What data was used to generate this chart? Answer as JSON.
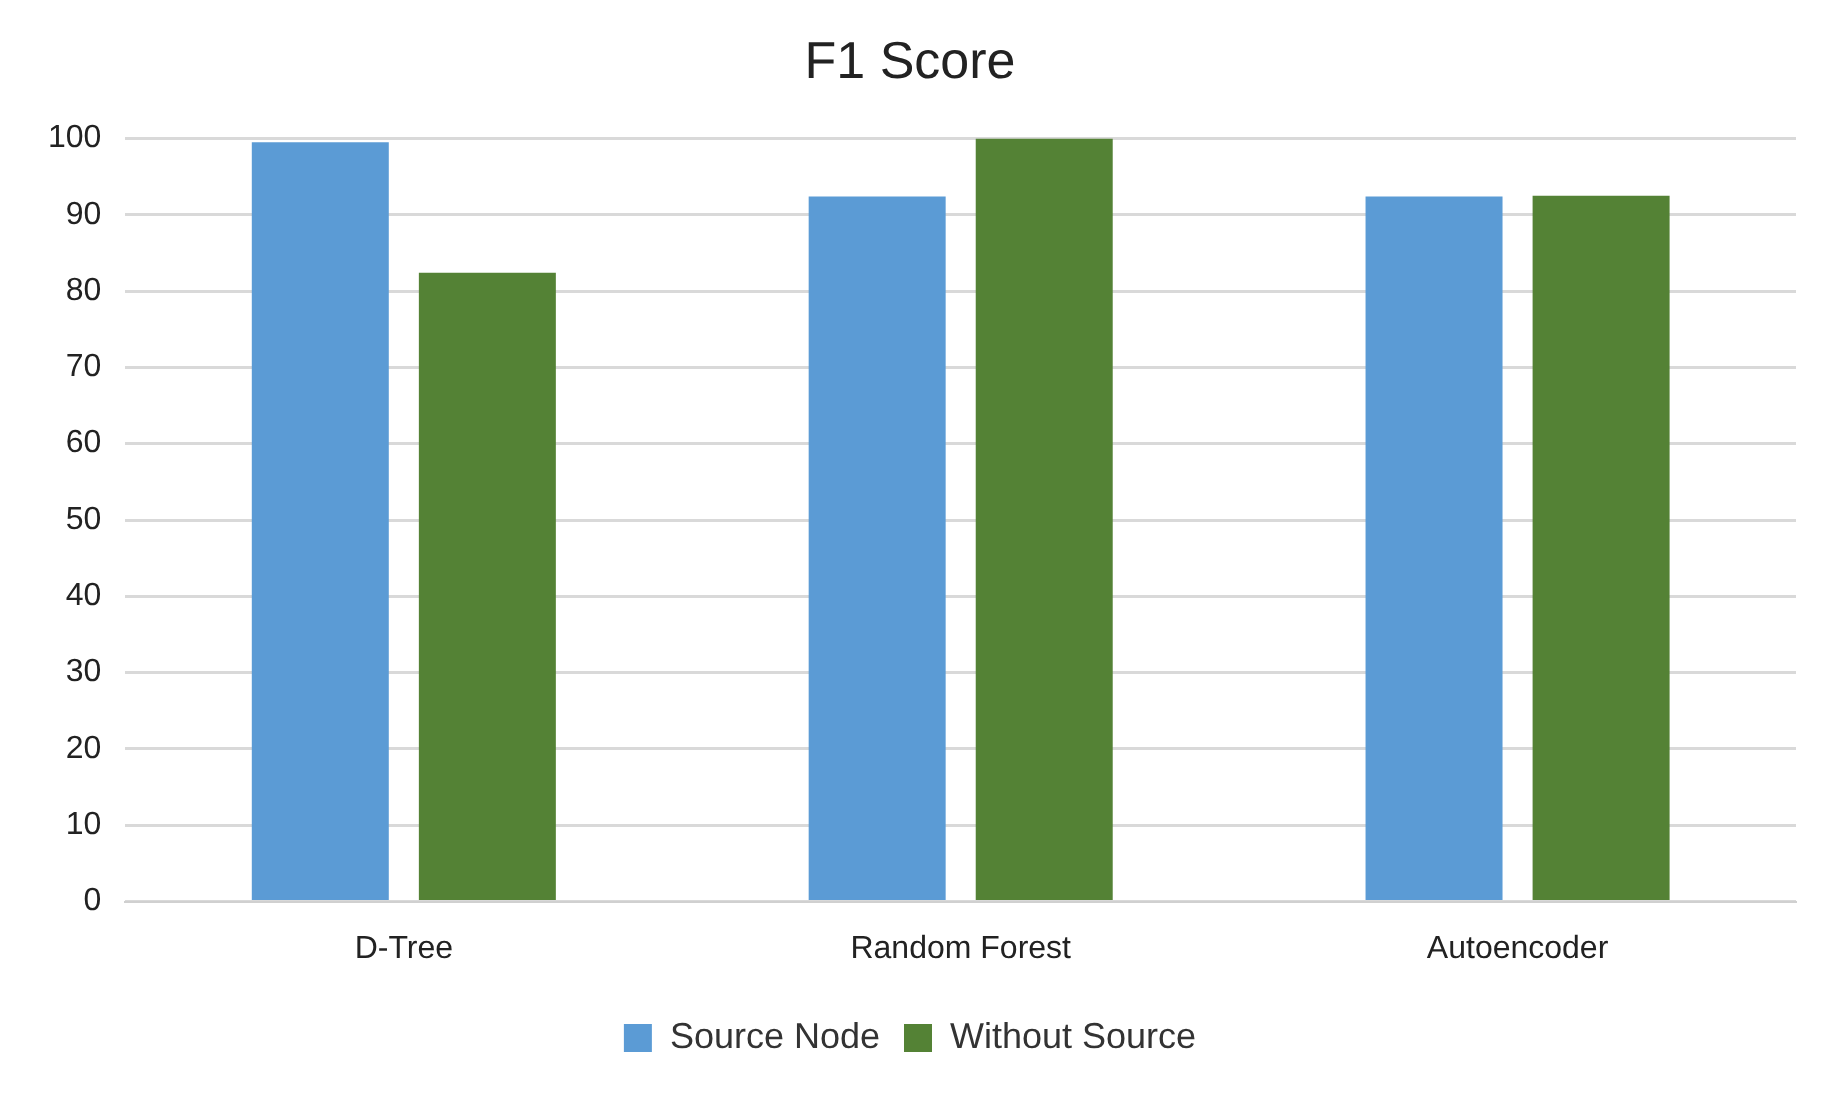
{
  "chart_data": {
    "type": "bar",
    "title": "F1 Score",
    "categories": [
      "D-Tree",
      "Random Forest",
      "Autoencoder"
    ],
    "series": [
      {
        "name": "Source Node",
        "color": "#5b9bd5",
        "values": [
          99.5,
          92.4,
          92.4
        ]
      },
      {
        "name": "Without Source",
        "color": "#548235",
        "values": [
          82.4,
          100,
          92.5
        ]
      }
    ],
    "ylim": [
      0,
      100
    ],
    "yticks": [
      0,
      10,
      20,
      30,
      40,
      50,
      60,
      70,
      80,
      90,
      100
    ],
    "grid": "y",
    "legend": "bottom"
  }
}
